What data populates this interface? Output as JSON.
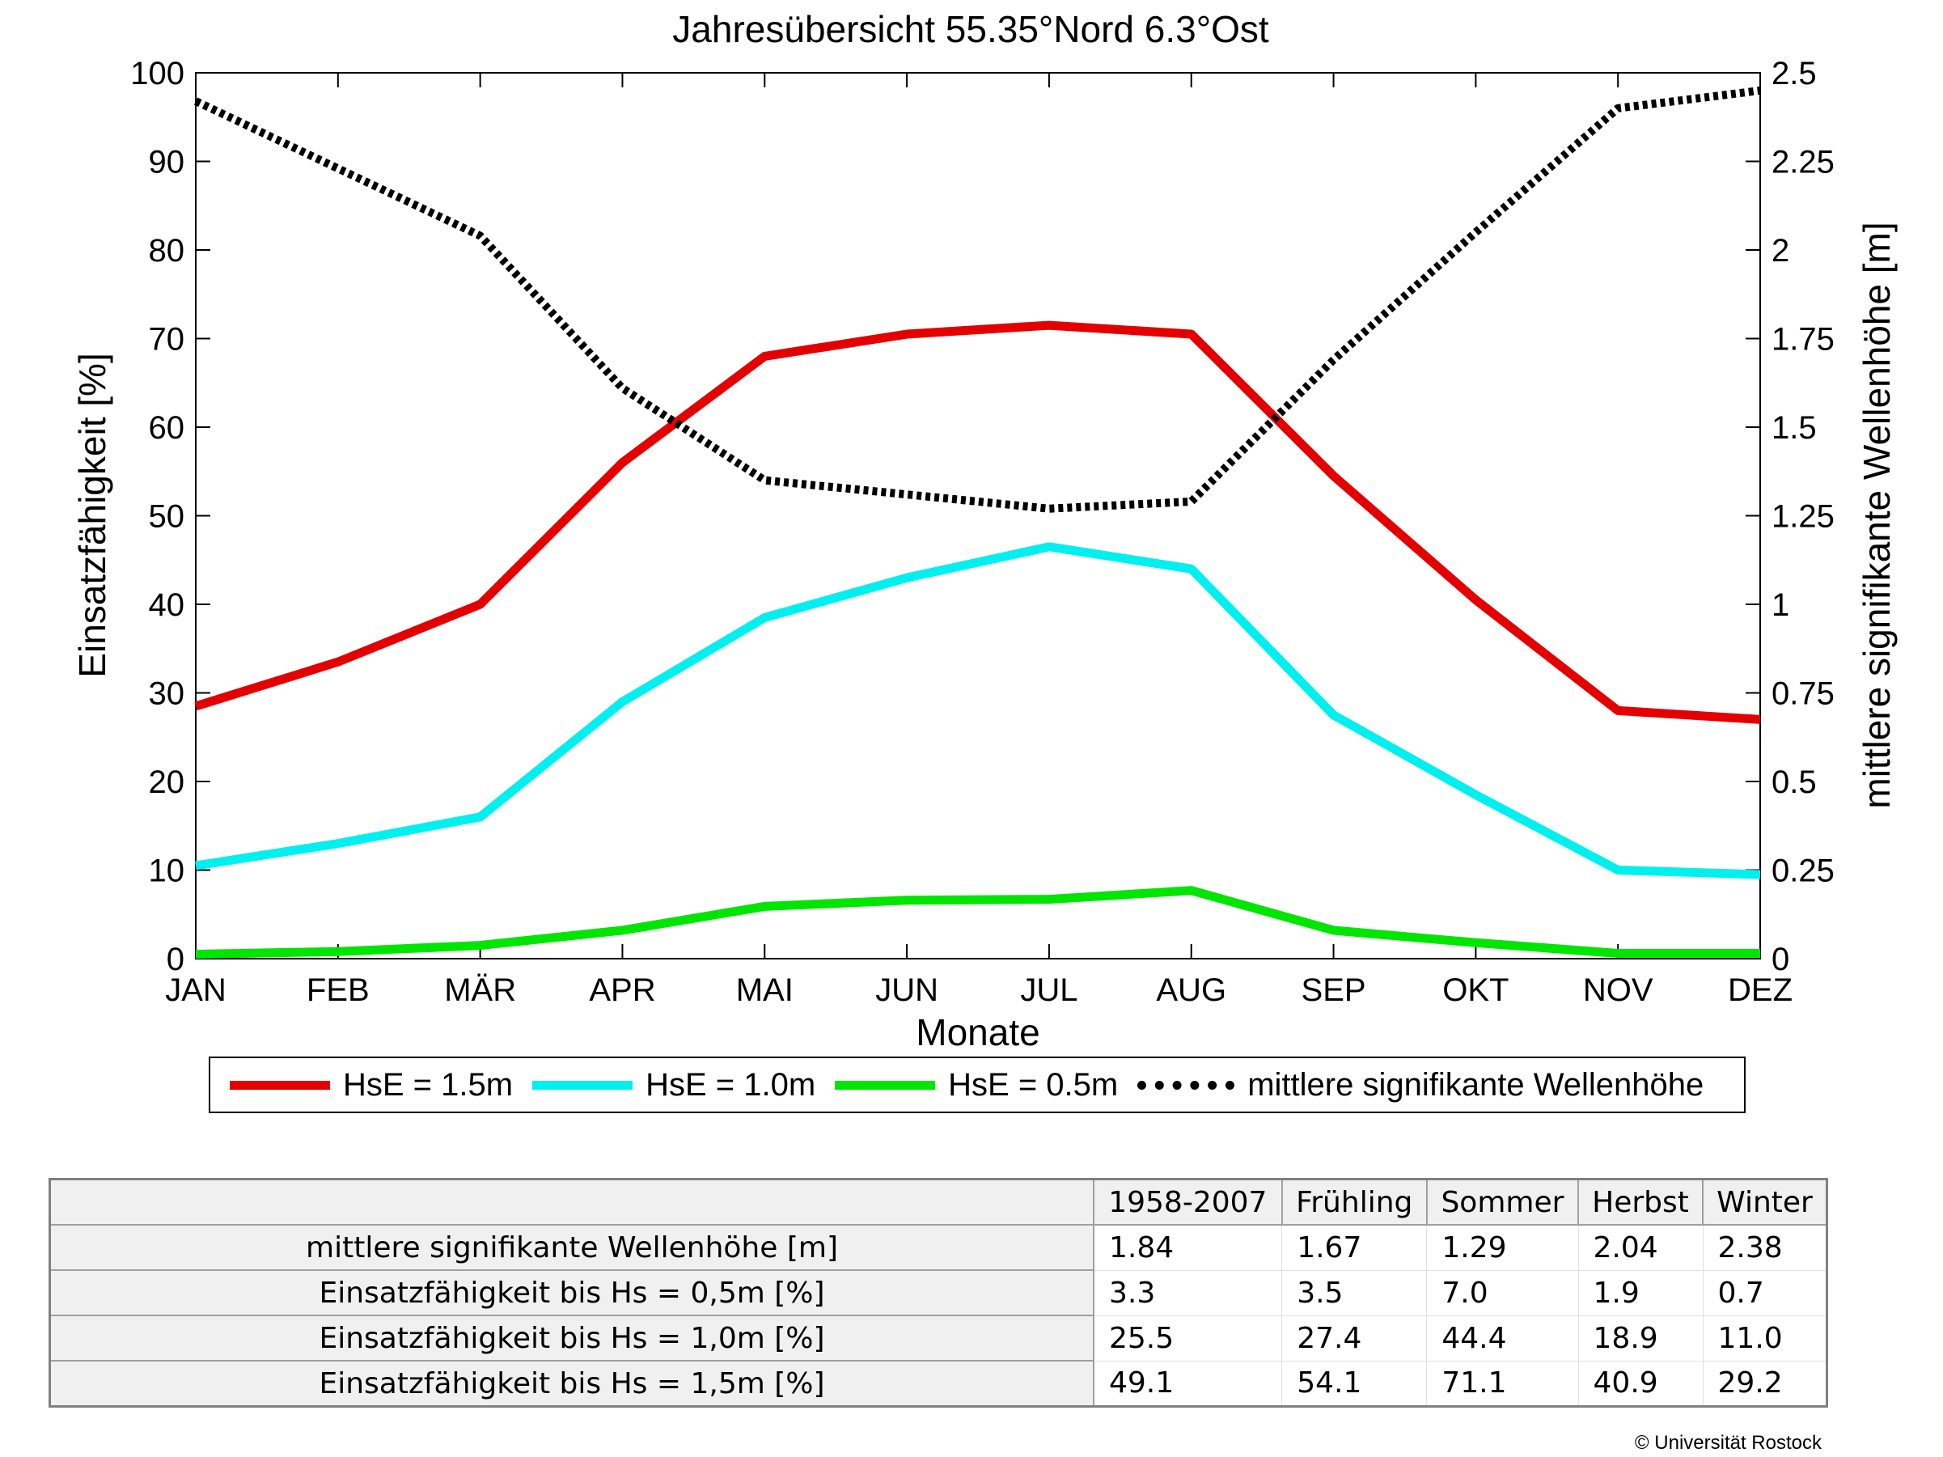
{
  "chart_data": {
    "type": "line",
    "title": "Jahresübersicht  55.35°Nord  6.3°Ost",
    "xlabel": "Monate",
    "ylabel": "Einsatzfähigkeit [%]",
    "y2label": "mittlere signifikante Wellenhöhe [m]",
    "ylim": [
      0,
      100
    ],
    "y2lim": [
      0,
      2.5
    ],
    "yticks": [
      "0",
      "10",
      "20",
      "30",
      "40",
      "50",
      "60",
      "70",
      "80",
      "90",
      "100"
    ],
    "y2ticks": [
      "0",
      "0.25",
      "0.5",
      "0.75",
      "1",
      "1.25",
      "1.5",
      "1.75",
      "2",
      "2.25",
      "2.5"
    ],
    "categories": [
      "JAN",
      "FEB",
      "MÄR",
      "APR",
      "MAI",
      "JUN",
      "JUL",
      "AUG",
      "SEP",
      "OKT",
      "NOV",
      "DEZ"
    ],
    "grid": false,
    "legend_position": "bottom",
    "series": [
      {
        "name": "HsE = 1.5m",
        "axis": "left",
        "color": "#e50000",
        "style": "solid",
        "values": [
          28.5,
          33.5,
          40,
          56,
          68,
          70.5,
          71.5,
          70.5,
          54.5,
          40.5,
          28,
          27
        ]
      },
      {
        "name": "HsE = 1.0m",
        "axis": "left",
        "color": "#00f0f0",
        "style": "solid",
        "values": [
          10.5,
          13,
          16,
          29,
          38.5,
          43,
          46.5,
          44,
          27.5,
          18.5,
          10,
          9.5
        ]
      },
      {
        "name": "HsE = 0.5m",
        "axis": "left",
        "color": "#00e600",
        "style": "solid",
        "values": [
          0.5,
          0.8,
          1.5,
          3.2,
          5.9,
          6.6,
          6.7,
          7.7,
          3.2,
          1.8,
          0.6,
          0.6
        ]
      },
      {
        "name": "mittlere signifikante Wellenhöhe",
        "axis": "right",
        "color": "#000000",
        "style": "dotted",
        "values": [
          2.42,
          2.23,
          2.04,
          1.61,
          1.35,
          1.31,
          1.27,
          1.29,
          1.69,
          2.05,
          2.4,
          2.45
        ]
      }
    ]
  },
  "summary_table": {
    "headers": [
      "1958-2007",
      "Frühling",
      "Sommer",
      "Herbst",
      "Winter"
    ],
    "rows": [
      {
        "label": "mittlere signifikante Wellenhöhe [m]",
        "values": [
          "1.84",
          "1.67",
          "1.29",
          "2.04",
          "2.38"
        ]
      },
      {
        "label": "Einsatzfähigkeit bis Hs = 0,5m [%]",
        "values": [
          "3.3",
          "3.5",
          "7.0",
          "1.9",
          "0.7"
        ]
      },
      {
        "label": "Einsatzfähigkeit bis Hs = 1,0m [%]",
        "values": [
          "25.5",
          "27.4",
          "44.4",
          "18.9",
          "11.0"
        ]
      },
      {
        "label": "Einsatzfähigkeit bis Hs = 1,5m [%]",
        "values": [
          "49.1",
          "54.1",
          "71.1",
          "40.9",
          "29.2"
        ]
      }
    ]
  },
  "copyright": "© Universität Rostock"
}
